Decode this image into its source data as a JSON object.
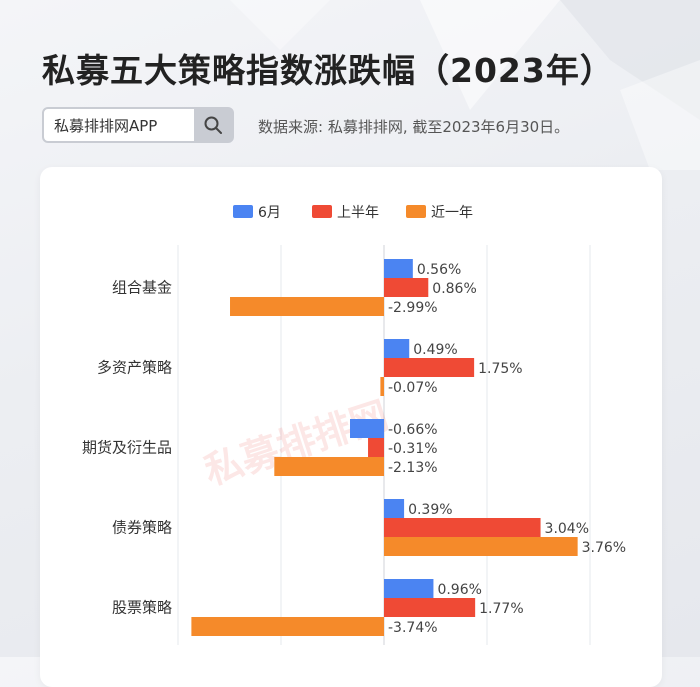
{
  "header": {
    "title": "私募五大策略指数涨跌幅（2023年）",
    "search_text": "私募排排网APP",
    "source_note": "数据来源: 私募排排网, 截至2023年6月30日。"
  },
  "watermark": "私募排排网",
  "icons": {
    "search": "search-icon"
  },
  "colors": {
    "blue": "#4b84f2",
    "red": "#ef4a35",
    "orange": "#f58a2a",
    "title": "#222222"
  },
  "chart_data": {
    "type": "bar",
    "orientation": "horizontal",
    "categories": [
      "组合基金",
      "多资产策略",
      "期货及衍生品",
      "债券策略",
      "股票策略"
    ],
    "series": [
      {
        "name": "6月",
        "values": [
          0.56,
          0.49,
          -0.66,
          0.39,
          0.96
        ],
        "labels": [
          "0.56%",
          "0.49%",
          "-0.66%",
          "0.39%",
          "0.96%"
        ]
      },
      {
        "name": "上半年",
        "values": [
          0.86,
          1.75,
          -0.31,
          3.04,
          1.77
        ],
        "labels": [
          "0.86%",
          "1.75%",
          "-0.31%",
          "3.04%",
          "1.77%"
        ]
      },
      {
        "name": "近一年",
        "values": [
          -2.99,
          -0.07,
          -2.13,
          3.76,
          -3.74
        ],
        "labels": [
          "-2.99%",
          "-0.07%",
          "-2.13%",
          "3.76%",
          "-3.74%"
        ]
      }
    ],
    "xlim": [
      -4,
      4
    ],
    "grid": true,
    "legend_position": "top"
  }
}
